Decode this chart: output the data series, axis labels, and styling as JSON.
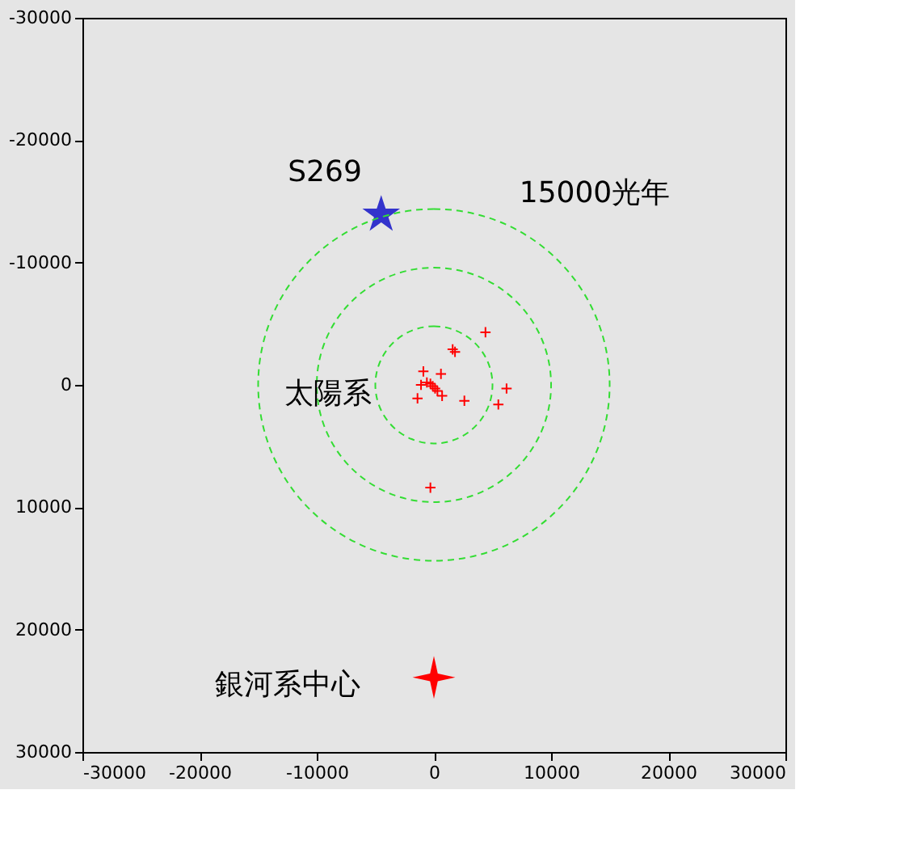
{
  "chart_data": {
    "type": "scatter",
    "xlim": [
      -30000,
      30000
    ],
    "ylim": [
      30000,
      -30000
    ],
    "xticks": [
      -30000,
      -20000,
      -10000,
      0,
      10000,
      20000,
      30000
    ],
    "yticks": [
      -30000,
      -20000,
      -10000,
      0,
      10000,
      20000,
      30000
    ],
    "grid": false,
    "series": [
      {
        "marker": "cross",
        "color": "#ff0000",
        "x": [
          4400,
          1600,
          1800,
          -900,
          600,
          -300,
          -100,
          -600,
          100,
          -1100,
          300,
          700,
          -1400,
          2600,
          6200,
          5500,
          -300
        ],
        "values": [
          -4300,
          -2900,
          -2700,
          -1100,
          -900,
          -100,
          100,
          -200,
          300,
          0,
          500,
          900,
          1100,
          1300,
          300,
          1600,
          8400
        ]
      },
      {
        "marker": "star",
        "color": "#3333cc",
        "x": [
          -4500
        ],
        "values": [
          -13900
        ]
      },
      {
        "marker": "diamond",
        "color": "#ff0000",
        "x": [
          0
        ],
        "values": [
          23900
        ]
      }
    ],
    "annotations": [
      "S269",
      "15000光年",
      "太陽系",
      "銀河系中心"
    ]
  }
}
